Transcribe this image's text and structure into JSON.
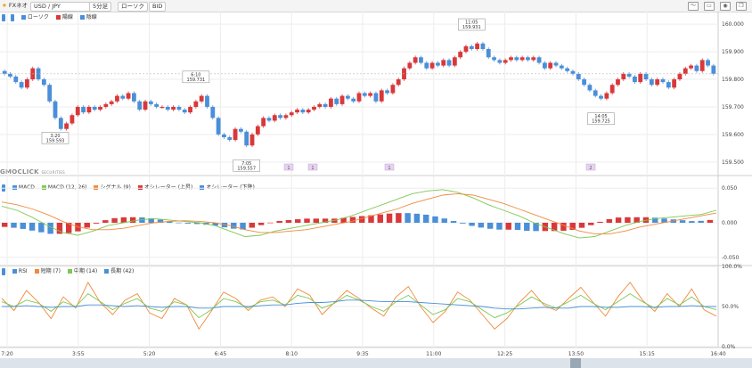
{
  "toolbar": {
    "app_name": "FXネオ",
    "pair": "USD / JPY",
    "interval": "5分足",
    "chart_kind": "ローソク",
    "price_side": "BID"
  },
  "main_legend": {
    "badges": [
      "",
      ""
    ],
    "items": [
      {
        "label": "ローソク",
        "color": "#4a8fd8"
      },
      {
        "label": "陽線",
        "color": "#d9383a"
      },
      {
        "label": "陰線",
        "color": "#4a8fd8"
      }
    ]
  },
  "logo": {
    "text": "GMOCLICK",
    "sub": "SECURITIES"
  },
  "macd_legend": {
    "badge": "",
    "items": [
      {
        "label": "MACD",
        "color": "#4a8fd8"
      },
      {
        "label": "MACD (12, 26)",
        "color": "#7ec851"
      },
      {
        "label": "シグナル (9)",
        "color": "#f08a3c"
      },
      {
        "label": "オシレーター (上昇)",
        "color": "#d9383a"
      },
      {
        "label": "オシレーター (下降)",
        "color": "#4a8fd8"
      }
    ]
  },
  "rsi_legend": {
    "badge": "",
    "items": [
      {
        "label": "RSI",
        "color": "#4a8fd8"
      },
      {
        "label": "短期 (7)",
        "color": "#f08a3c"
      },
      {
        "label": "中期 (14)",
        "color": "#7ec851"
      },
      {
        "label": "長期 (42)",
        "color": "#4a8fd8"
      }
    ]
  },
  "chart_data": [
    {
      "type": "candlestick",
      "y_ticks": [
        "160.000",
        "159.900",
        "159.800",
        "159.700",
        "159.600",
        "159.500"
      ],
      "ylim": [
        159.48,
        160.02
      ],
      "up_color": "#d9383a",
      "down_color": "#4a8fd8",
      "closes": [
        159.82,
        159.81,
        159.79,
        159.77,
        159.8,
        159.84,
        159.8,
        159.78,
        159.72,
        159.66,
        159.62,
        159.64,
        159.67,
        159.7,
        159.68,
        159.7,
        159.69,
        159.7,
        159.71,
        159.72,
        159.74,
        159.73,
        159.75,
        159.72,
        159.69,
        159.72,
        159.71,
        159.7,
        159.7,
        159.69,
        159.7,
        159.69,
        159.68,
        159.7,
        159.72,
        159.74,
        159.7,
        159.66,
        159.6,
        159.59,
        159.58,
        159.62,
        159.61,
        159.56,
        159.6,
        159.63,
        159.66,
        159.65,
        159.67,
        159.66,
        159.67,
        159.68,
        159.69,
        159.68,
        159.69,
        159.7,
        159.71,
        159.7,
        159.73,
        159.71,
        159.74,
        159.73,
        159.72,
        159.75,
        159.74,
        159.75,
        159.72,
        159.76,
        159.75,
        159.78,
        159.8,
        159.84,
        159.86,
        159.88,
        159.86,
        159.84,
        159.86,
        159.85,
        159.87,
        159.85,
        159.88,
        159.9,
        159.92,
        159.91,
        159.93,
        159.91,
        159.88,
        159.87,
        159.86,
        159.87,
        159.88,
        159.87,
        159.88,
        159.87,
        159.88,
        159.86,
        159.84,
        159.86,
        159.85,
        159.84,
        159.83,
        159.82,
        159.8,
        159.78,
        159.76,
        159.74,
        159.73,
        159.75,
        159.78,
        159.8,
        159.82,
        159.81,
        159.79,
        159.82,
        159.8,
        159.78,
        159.8,
        159.79,
        159.77,
        159.8,
        159.82,
        159.84,
        159.85,
        159.83,
        159.87,
        159.85,
        159.82
      ],
      "annotations": [
        {
          "time": "3:20",
          "price": "159.593"
        },
        {
          "time": "6:10",
          "price": "159.731"
        },
        {
          "time": "7:05",
          "price": "159.557"
        },
        {
          "time": "11:05",
          "price": "159.931"
        },
        {
          "time": "14:05",
          "price": "159.725"
        }
      ],
      "event_markers": [
        "1",
        "1",
        "1",
        "2"
      ]
    },
    {
      "type": "line",
      "y_ticks": [
        "0.050",
        "0.000",
        "-0.050"
      ],
      "ylim": [
        -0.058,
        0.058
      ],
      "series": [
        {
          "name": "MACD (12, 26)",
          "color": "#7ec851",
          "values": [
            0.024,
            0.018,
            0.008,
            -0.004,
            -0.014,
            -0.018,
            -0.012,
            -0.004,
            0.0,
            0.004,
            0.006,
            0.004,
            0.002,
            0.0,
            -0.004,
            -0.012,
            -0.02,
            -0.018,
            -0.012,
            -0.008,
            -0.004,
            0.0,
            0.004,
            0.01,
            0.018,
            0.026,
            0.034,
            0.042,
            0.046,
            0.048,
            0.044,
            0.036,
            0.026,
            0.018,
            0.01,
            0.0,
            -0.008,
            -0.016,
            -0.022,
            -0.02,
            -0.012,
            -0.004,
            0.002,
            0.006,
            0.008,
            0.01,
            0.012,
            0.018
          ]
        },
        {
          "name": "シグナル (9)",
          "color": "#f08a3c",
          "values": [
            0.03,
            0.026,
            0.02,
            0.012,
            0.002,
            -0.006,
            -0.01,
            -0.01,
            -0.008,
            -0.004,
            0.0,
            0.002,
            0.003,
            0.002,
            0.0,
            -0.004,
            -0.01,
            -0.014,
            -0.014,
            -0.012,
            -0.01,
            -0.006,
            -0.002,
            0.002,
            0.008,
            0.014,
            0.02,
            0.028,
            0.034,
            0.04,
            0.042,
            0.04,
            0.034,
            0.028,
            0.02,
            0.012,
            0.004,
            -0.004,
            -0.012,
            -0.016,
            -0.016,
            -0.012,
            -0.006,
            -0.002,
            0.002,
            0.006,
            0.01,
            0.014
          ]
        }
      ],
      "oscillator": [
        -0.006,
        -0.008,
        -0.012,
        -0.016,
        -0.016,
        -0.012,
        -0.002,
        0.006,
        0.008,
        0.008,
        0.006,
        0.002,
        -0.001,
        -0.002,
        -0.004,
        -0.008,
        -0.01,
        -0.004,
        0.002,
        0.004,
        0.006,
        0.006,
        0.006,
        0.008,
        0.01,
        0.012,
        0.014,
        0.014,
        0.012,
        0.008,
        0.002,
        -0.004,
        -0.008,
        -0.01,
        -0.01,
        -0.012,
        -0.012,
        -0.012,
        -0.01,
        -0.004,
        0.004,
        0.008,
        0.008,
        0.008,
        0.006,
        0.004,
        0.002,
        0.004
      ]
    },
    {
      "type": "line",
      "y_ticks": [
        "100.0%",
        "50.0%",
        "0.0%"
      ],
      "ylim": [
        0,
        100
      ],
      "series": [
        {
          "name": "短期 (7)",
          "color": "#f08a3c",
          "values": [
            60,
            45,
            70,
            55,
            35,
            62,
            48,
            80,
            55,
            40,
            58,
            66,
            42,
            35,
            60,
            52,
            22,
            44,
            68,
            60,
            45,
            58,
            62,
            50,
            72,
            64,
            40,
            55,
            70,
            60,
            48,
            38,
            62,
            75,
            50,
            30,
            44,
            68,
            58,
            40,
            22,
            35,
            55,
            70,
            52,
            45,
            60,
            74,
            55,
            38,
            62,
            80,
            58,
            44,
            66,
            50,
            72,
            46,
            38
          ]
        },
        {
          "name": "中期 (14)",
          "color": "#7ec851",
          "values": [
            56,
            50,
            58,
            54,
            44,
            56,
            50,
            66,
            56,
            46,
            54,
            60,
            48,
            44,
            56,
            52,
            36,
            46,
            60,
            56,
            48,
            56,
            58,
            52,
            64,
            60,
            48,
            54,
            64,
            58,
            50,
            44,
            56,
            64,
            52,
            40,
            46,
            60,
            56,
            46,
            36,
            42,
            52,
            62,
            54,
            48,
            56,
            64,
            54,
            46,
            56,
            66,
            56,
            48,
            60,
            52,
            62,
            50,
            46
          ]
        },
        {
          "name": "長期 (42)",
          "color": "#4a8fd8",
          "values": [
            50,
            50,
            51,
            50,
            49,
            50,
            50,
            52,
            52,
            51,
            50,
            51,
            50,
            49,
            50,
            50,
            48,
            48,
            50,
            50,
            50,
            51,
            52,
            52,
            54,
            55,
            55,
            56,
            58,
            58,
            57,
            56,
            56,
            56,
            55,
            54,
            53,
            52,
            51,
            50,
            48,
            47,
            47,
            48,
            49,
            48,
            48,
            50,
            50,
            49,
            49,
            50,
            50,
            49,
            50,
            50,
            51,
            50,
            50
          ]
        }
      ]
    }
  ],
  "x_axis": {
    "labels": [
      "7:20",
      "3:55",
      "5:20",
      "6:45",
      "8:10",
      "9:35",
      "11:00",
      "12:25",
      "13:50",
      "15:15",
      "16:40"
    ]
  }
}
